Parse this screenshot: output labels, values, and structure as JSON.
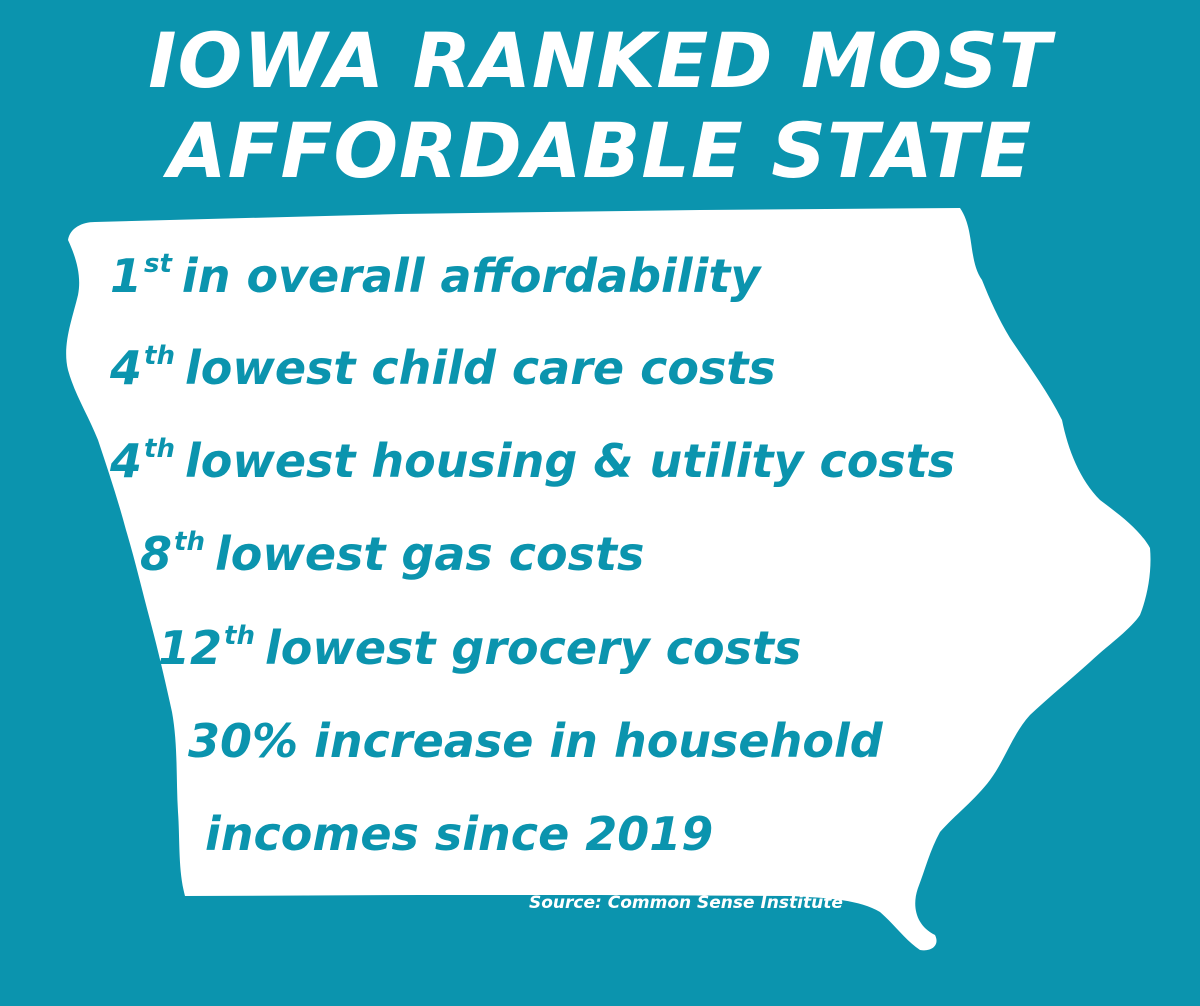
{
  "title": {
    "line1": "IOWA RANKED MOST",
    "line2": "AFFORDABLE STATE"
  },
  "colors": {
    "background": "#0b94ae",
    "shape": "#ffffff",
    "stat_text": "#0b94ae",
    "title_text": "#ffffff"
  },
  "stats": [
    {
      "rank": "1",
      "suffix": "st",
      "text": "in overall affordability"
    },
    {
      "rank": "4",
      "suffix": "th",
      "text": "lowest child care costs"
    },
    {
      "rank": "4",
      "suffix": "th",
      "text": "lowest housing & utility costs"
    },
    {
      "rank": "8",
      "suffix": "th",
      "text": "lowest gas costs"
    },
    {
      "rank": "12",
      "suffix": "th",
      "text": "lowest grocery costs"
    },
    {
      "text": "30% increase in household"
    },
    {
      "text": "incomes since 2019"
    }
  ],
  "source": "Source: Common Sense Institute",
  "shape_icon": "iowa-state-outline"
}
